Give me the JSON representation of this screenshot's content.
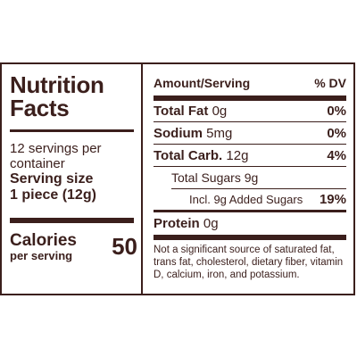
{
  "title_line1": "Nutrition",
  "title_line2": "Facts",
  "servings_per_container": "12 servings per container",
  "serving_size_label": "Serving size",
  "serving_size_value": "1 piece (12g)",
  "calories_label": "Calories",
  "calories_sub": "per serving",
  "calories_value": "50",
  "header": {
    "amount": "Amount/Serving",
    "dv": "% DV"
  },
  "rows": {
    "total_fat": {
      "label": "Total Fat",
      "amount": "0g",
      "dv": "0%"
    },
    "sodium": {
      "label": "Sodium",
      "amount": "5mg",
      "dv": "0%"
    },
    "total_carb": {
      "label": "Total Carb.",
      "amount": "12g",
      "dv": "4%"
    },
    "total_sugars": {
      "label": "Total Sugars 9g"
    },
    "added_sugars": {
      "label": "Incl. 9g Added Sugars",
      "dv": "19%"
    },
    "protein": {
      "label": "Protein",
      "amount": "0g"
    }
  },
  "footnote": "Not a significant source of saturated fat, trans fat, cholesterol, dietary fiber, vitamin D, calcium, iron, and potassium."
}
